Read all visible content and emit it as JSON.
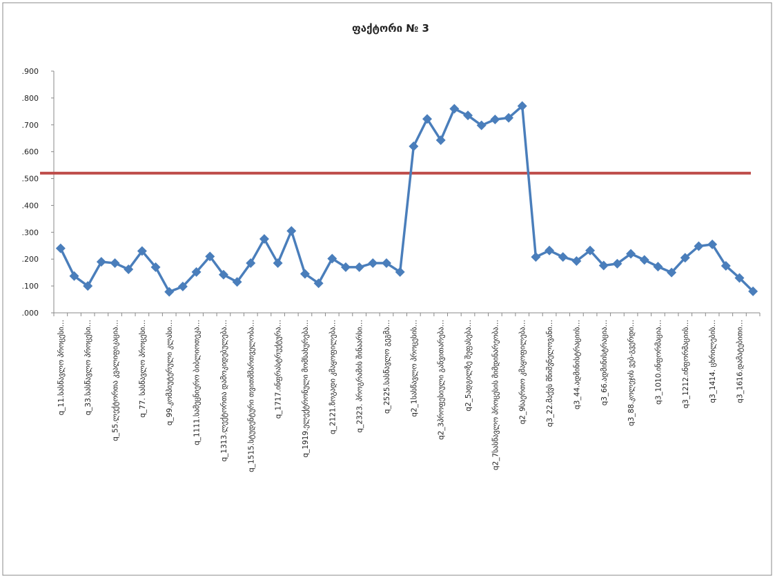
{
  "chart_data": {
    "type": "line",
    "title": "ფაქტორი № 3",
    "categories": [
      "q_11.სასწავლო პროცესი…",
      null,
      "q_33.სასწავლო პროცესი…",
      null,
      "q_55.ლექტორთა კვალიფიკაცია…",
      null,
      "q_77. სასწავლო პროცესი…",
      null,
      "q_99.კომპიუტერული კლასი…",
      null,
      "q_1111.სამეცნიერო ბიბლიოთეკა…",
      null,
      "q_1313.ლექტორთა დამოკიდებულება…",
      null,
      "q_1515.სტუდენტური თვითმმართველობა…",
      null,
      "q_1717.ინფრასტრუქტურა…",
      null,
      "q_1919.ელექტრონული მომსახურება…",
      null,
      "q_2121.ზოგადი კმაყოფილება…",
      null,
      "q_2323. პროგრამის შინაარსი…",
      null,
      "q_2525.სასწავლო გეგმა…",
      null,
      "q2_1სასწავლო პროცესის…",
      null,
      "q2_3პროფესიული განვითარება…",
      null,
      "q2_5ადგილზე შეფასება…",
      null,
      "q2_7სასწავლო პროცესის მიმდინარეობა…",
      null,
      "q2_9საერთო კმაყოფილება…",
      null,
      "q3_22.მაქვს მნიშვნელოვანი…",
      null,
      "q3_44.ადმინისტრაციის…",
      null,
      "q3_66.ადმინისტრაცია…",
      null,
      "q3_88.კოლეჯის ვებ-გვერდი…",
      null,
      "q3_1010.ინფორმაცია…",
      null,
      "q3_1212.ინფორმაციის…",
      null,
      "q3_1414. ცხრილების…",
      null,
      "q3_1616.დამატებითი…",
      null
    ],
    "series": [
      {
        "color": "#4a7ebb",
        "values": [
          0.24,
          0.137,
          0.1,
          0.19,
          0.185,
          0.162,
          0.23,
          0.17,
          0.078,
          0.098,
          0.152,
          0.21,
          0.142,
          0.115,
          0.185,
          0.275,
          0.185,
          0.305,
          0.145,
          0.11,
          0.202,
          0.17,
          0.17,
          0.185,
          0.185,
          0.152,
          0.62,
          0.722,
          0.643,
          0.76,
          0.735,
          0.698,
          0.72,
          0.726,
          0.77,
          0.208,
          0.232,
          0.208,
          0.193,
          0.232,
          0.176,
          0.183,
          0.22,
          0.197,
          0.172,
          0.15,
          0.205,
          0.248,
          0.255,
          0.175,
          0.13,
          0.08
        ]
      }
    ],
    "ylim": [
      0,
      0.9
    ],
    "yticks": [
      {
        "value": 0,
        "label": ".000"
      },
      {
        "value": 0.1,
        "label": ".100"
      },
      {
        "value": 0.2,
        "label": ".200"
      },
      {
        "value": 0.3,
        "label": ".300"
      },
      {
        "value": 0.4,
        "label": ".400"
      },
      {
        "value": 0.5,
        "label": ".500"
      },
      {
        "value": 0.6,
        "label": ".600"
      },
      {
        "value": 0.7,
        "label": ".700"
      },
      {
        "value": 0.8,
        "label": ".800"
      },
      {
        "value": 0.9,
        "label": ".900"
      }
    ],
    "reference_line": {
      "value": 0.52,
      "color": "#be4b48"
    },
    "grid": false
  }
}
